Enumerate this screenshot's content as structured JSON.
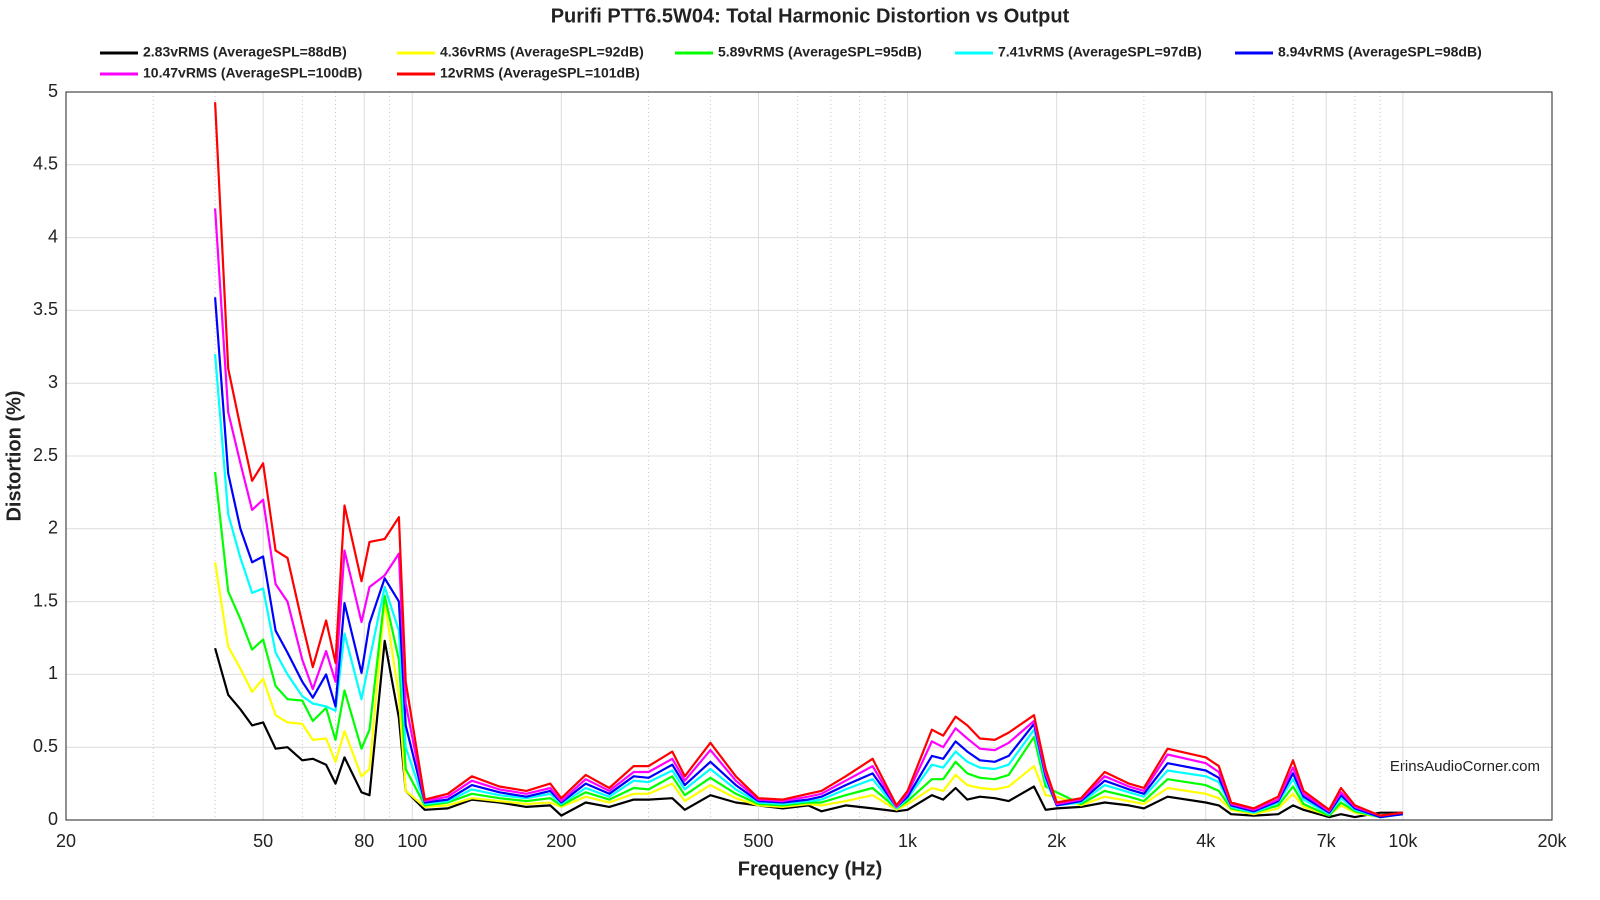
{
  "chart_data": {
    "type": "line",
    "title": "Purifi PTT6.5W04: Total Harmonic Distortion vs Output",
    "xlabel": "Frequency (Hz)",
    "ylabel": "Distortion (%)",
    "annotation": "ErinsAudioCorner.com",
    "xscale": "log",
    "grid": true,
    "xlim": [
      20,
      20000
    ],
    "ylim": [
      0,
      5
    ],
    "xticks": [
      20,
      50,
      80,
      100,
      200,
      500,
      {
        "value": 1000,
        "label": "1k"
      },
      {
        "value": 2000,
        "label": "2k"
      },
      {
        "value": 4000,
        "label": "4k"
      },
      {
        "value": 7000,
        "label": "7k"
      },
      {
        "value": 10000,
        "label": "10k"
      },
      {
        "value": 20000,
        "label": "20k"
      }
    ],
    "xminorticks": [
      30,
      40,
      60,
      70,
      90,
      300,
      400,
      600,
      700,
      800,
      900,
      3000,
      5000,
      6000,
      8000,
      9000
    ],
    "yticks": [
      0,
      0.5,
      1,
      1.5,
      2,
      2.5,
      3,
      3.5,
      4,
      4.5,
      5
    ],
    "x": [
      40,
      42.5,
      45,
      47.5,
      50,
      53,
      56,
      60,
      63,
      67,
      70,
      73,
      79,
      82,
      88,
      94,
      97,
      106,
      118,
      132,
      150,
      170,
      190,
      200,
      224,
      250,
      280,
      300,
      335,
      355,
      400,
      450,
      500,
      560,
      630,
      670,
      750,
      850,
      950,
      1000,
      1120,
      1180,
      1250,
      1320,
      1400,
      1500,
      1600,
      1800,
      1900,
      2000,
      2240,
      2500,
      2800,
      3000,
      3350,
      4000,
      4250,
      4500,
      5000,
      5600,
      6000,
      6300,
      7100,
      7500,
      8000,
      9000,
      10000
    ],
    "series": [
      {
        "name": "2.83vRMS (AverageSPL=88dB)",
        "color": "#000000",
        "values": [
          1.18,
          0.86,
          0.76,
          0.65,
          0.67,
          0.49,
          0.5,
          0.41,
          0.42,
          0.38,
          0.25,
          0.43,
          0.19,
          0.17,
          1.23,
          0.7,
          0.2,
          0.07,
          0.08,
          0.14,
          0.12,
          0.09,
          0.1,
          0.03,
          0.12,
          0.09,
          0.14,
          0.14,
          0.15,
          0.07,
          0.17,
          0.12,
          0.1,
          0.08,
          0.1,
          0.06,
          0.1,
          0.08,
          0.06,
          0.07,
          0.17,
          0.14,
          0.22,
          0.14,
          0.16,
          0.15,
          0.13,
          0.23,
          0.07,
          0.08,
          0.09,
          0.12,
          0.1,
          0.08,
          0.16,
          0.12,
          0.1,
          0.04,
          0.03,
          0.04,
          0.1,
          0.07,
          0.02,
          0.04,
          0.02,
          0.05,
          0.05
        ]
      },
      {
        "name": "4.36vRMS (AverageSPL=92dB)",
        "color": "#ffff00",
        "values": [
          1.77,
          1.19,
          1.04,
          0.88,
          0.97,
          0.72,
          0.67,
          0.66,
          0.55,
          0.56,
          0.4,
          0.61,
          0.3,
          0.35,
          1.5,
          0.85,
          0.2,
          0.09,
          0.1,
          0.15,
          0.13,
          0.11,
          0.12,
          0.09,
          0.16,
          0.12,
          0.18,
          0.18,
          0.25,
          0.13,
          0.24,
          0.15,
          0.1,
          0.09,
          0.11,
          0.1,
          0.13,
          0.17,
          0.07,
          0.11,
          0.22,
          0.2,
          0.31,
          0.24,
          0.22,
          0.21,
          0.23,
          0.37,
          0.17,
          0.16,
          0.1,
          0.16,
          0.13,
          0.11,
          0.22,
          0.18,
          0.15,
          0.07,
          0.04,
          0.08,
          0.18,
          0.09,
          0.03,
          0.1,
          0.05,
          0.02,
          0.04
        ]
      },
      {
        "name": "5.89vRMS (AverageSPL=95dB)",
        "color": "#00ff00",
        "values": [
          2.39,
          1.57,
          1.38,
          1.17,
          1.24,
          0.92,
          0.83,
          0.82,
          0.68,
          0.77,
          0.55,
          0.89,
          0.49,
          0.62,
          1.54,
          1.1,
          0.35,
          0.1,
          0.12,
          0.18,
          0.15,
          0.13,
          0.15,
          0.1,
          0.19,
          0.14,
          0.22,
          0.21,
          0.3,
          0.17,
          0.29,
          0.18,
          0.11,
          0.1,
          0.12,
          0.12,
          0.17,
          0.22,
          0.08,
          0.13,
          0.28,
          0.28,
          0.4,
          0.32,
          0.29,
          0.28,
          0.31,
          0.57,
          0.23,
          0.19,
          0.11,
          0.2,
          0.16,
          0.13,
          0.28,
          0.24,
          0.2,
          0.08,
          0.05,
          0.1,
          0.23,
          0.11,
          0.03,
          0.12,
          0.06,
          0.02,
          0.04
        ]
      },
      {
        "name": "7.41vRMS (AverageSPL=97dB)",
        "color": "#00ffff",
        "values": [
          3.2,
          2.1,
          1.8,
          1.56,
          1.59,
          1.15,
          1.0,
          0.85,
          0.8,
          0.78,
          0.75,
          1.28,
          0.83,
          1.1,
          1.6,
          1.3,
          0.5,
          0.11,
          0.13,
          0.21,
          0.17,
          0.15,
          0.18,
          0.11,
          0.22,
          0.16,
          0.27,
          0.26,
          0.34,
          0.21,
          0.35,
          0.21,
          0.12,
          0.11,
          0.13,
          0.14,
          0.21,
          0.28,
          0.08,
          0.15,
          0.38,
          0.36,
          0.47,
          0.4,
          0.36,
          0.35,
          0.38,
          0.62,
          0.27,
          0.1,
          0.12,
          0.24,
          0.19,
          0.16,
          0.34,
          0.3,
          0.26,
          0.09,
          0.05,
          0.12,
          0.28,
          0.14,
          0.04,
          0.15,
          0.07,
          0.02,
          0.04
        ]
      },
      {
        "name": "8.94vRMS (AverageSPL=98dB)",
        "color": "#0000ff",
        "values": [
          3.59,
          2.38,
          2.0,
          1.77,
          1.81,
          1.3,
          1.15,
          0.95,
          0.84,
          1.0,
          0.78,
          1.49,
          1.01,
          1.35,
          1.66,
          1.5,
          0.65,
          0.12,
          0.14,
          0.24,
          0.19,
          0.16,
          0.2,
          0.12,
          0.25,
          0.18,
          0.3,
          0.29,
          0.38,
          0.24,
          0.4,
          0.24,
          0.13,
          0.12,
          0.14,
          0.16,
          0.24,
          0.32,
          0.09,
          0.16,
          0.44,
          0.42,
          0.54,
          0.47,
          0.41,
          0.4,
          0.44,
          0.66,
          0.3,
          0.1,
          0.13,
          0.27,
          0.21,
          0.18,
          0.39,
          0.34,
          0.29,
          0.1,
          0.06,
          0.13,
          0.32,
          0.16,
          0.05,
          0.17,
          0.08,
          0.02,
          0.04
        ]
      },
      {
        "name": "10.47vRMS (AverageSPL=100dB)",
        "color": "#ff00ff",
        "values": [
          4.2,
          2.8,
          2.45,
          2.13,
          2.2,
          1.62,
          1.5,
          1.1,
          0.9,
          1.16,
          0.95,
          1.85,
          1.36,
          1.6,
          1.68,
          1.83,
          0.8,
          0.13,
          0.16,
          0.27,
          0.21,
          0.18,
          0.22,
          0.13,
          0.28,
          0.2,
          0.33,
          0.33,
          0.42,
          0.27,
          0.48,
          0.27,
          0.14,
          0.13,
          0.16,
          0.18,
          0.27,
          0.37,
          0.09,
          0.18,
          0.54,
          0.5,
          0.63,
          0.56,
          0.49,
          0.48,
          0.53,
          0.68,
          0.32,
          0.11,
          0.14,
          0.3,
          0.23,
          0.2,
          0.45,
          0.39,
          0.33,
          0.11,
          0.07,
          0.14,
          0.36,
          0.18,
          0.06,
          0.19,
          0.09,
          0.03,
          0.05
        ]
      },
      {
        "name": "12vRMS (AverageSPL=101dB)",
        "color": "#ff0000",
        "values": [
          4.93,
          3.1,
          2.7,
          2.33,
          2.45,
          1.85,
          1.8,
          1.35,
          1.05,
          1.37,
          1.08,
          2.16,
          1.64,
          1.91,
          1.93,
          2.08,
          0.95,
          0.14,
          0.18,
          0.3,
          0.23,
          0.2,
          0.25,
          0.15,
          0.31,
          0.22,
          0.37,
          0.37,
          0.47,
          0.3,
          0.53,
          0.3,
          0.15,
          0.14,
          0.18,
          0.2,
          0.3,
          0.42,
          0.1,
          0.2,
          0.62,
          0.58,
          0.71,
          0.65,
          0.56,
          0.55,
          0.6,
          0.72,
          0.35,
          0.12,
          0.15,
          0.33,
          0.25,
          0.22,
          0.49,
          0.43,
          0.37,
          0.12,
          0.08,
          0.16,
          0.41,
          0.2,
          0.07,
          0.22,
          0.1,
          0.03,
          0.05
        ]
      }
    ]
  }
}
